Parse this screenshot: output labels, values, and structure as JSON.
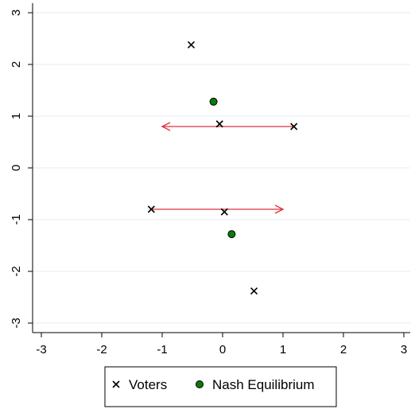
{
  "chart_data": {
    "type": "scatter",
    "xlim": [
      -3,
      3
    ],
    "ylim": [
      -3,
      3
    ],
    "x_ticks": [
      "-3",
      "-2",
      "-1",
      "0",
      "1",
      "2",
      "3"
    ],
    "y_ticks": [
      "-3",
      "-2",
      "-1",
      "0",
      "1",
      "2",
      "3"
    ],
    "grid": "horizontal",
    "series": [
      {
        "name": "Voters",
        "marker": "x",
        "color": "#000000",
        "points": [
          {
            "x": -0.52,
            "y": 2.38
          },
          {
            "x": -0.05,
            "y": 0.85
          },
          {
            "x": 1.18,
            "y": 0.8
          },
          {
            "x": -1.18,
            "y": -0.8
          },
          {
            "x": 0.03,
            "y": -0.85
          },
          {
            "x": 0.52,
            "y": -2.38
          }
        ]
      },
      {
        "name": "Nash Equilibrium",
        "marker": "circle",
        "color": "#0a7a0a",
        "points": [
          {
            "x": -0.15,
            "y": 1.28
          },
          {
            "x": 0.15,
            "y": -1.28
          }
        ]
      }
    ],
    "arrows": [
      {
        "from": {
          "x": 1.18,
          "y": 0.8
        },
        "to": {
          "x": -1.0,
          "y": 0.8
        },
        "color": "#e0303a"
      },
      {
        "from": {
          "x": -1.18,
          "y": -0.8
        },
        "to": {
          "x": 1.0,
          "y": -0.8
        },
        "color": "#e0303a"
      }
    ],
    "legend_position": "bottom",
    "legend": [
      {
        "label": "Voters",
        "marker": "x"
      },
      {
        "label": "Nash Equilibrium",
        "marker": "circle"
      }
    ]
  }
}
